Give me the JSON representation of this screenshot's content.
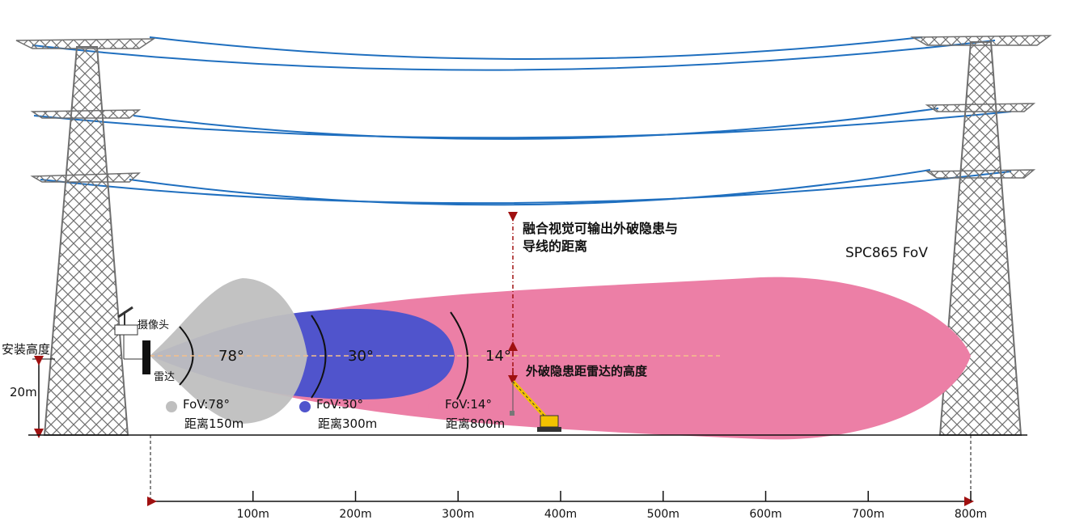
{
  "labels": {
    "install_height": "安装高度",
    "height_value": "20m",
    "camera": "摄像头",
    "radar": "雷达",
    "product_fov": "SPC865 FoV",
    "fusion_note_line1": "融合视觉可输出外破隐患与",
    "fusion_note_line2": "导线的距离",
    "hazard_height": "外破隐患距雷达的高度"
  },
  "fov_zones": [
    {
      "angle_label": "78°",
      "fov_text": "FoV:78°",
      "range_text": "距离150m",
      "color": "#bfbfbf"
    },
    {
      "angle_label": "30°",
      "fov_text": "FoV:30°",
      "range_text": "距离300m",
      "color": "#5054cc"
    },
    {
      "angle_label": "14°",
      "fov_text": "FoV:14°",
      "range_text": "距离800m",
      "color": "#ec7fa6"
    }
  ],
  "distance_ticks": [
    "100m",
    "200m",
    "300m",
    "400m",
    "500m",
    "600m",
    "700m",
    "800m"
  ],
  "colors": {
    "wire": "#1f6fbf",
    "tower": "#6f6f6f",
    "arrow": "#a01010",
    "centerline": "#f5c08a",
    "crane": "#f2c200"
  }
}
